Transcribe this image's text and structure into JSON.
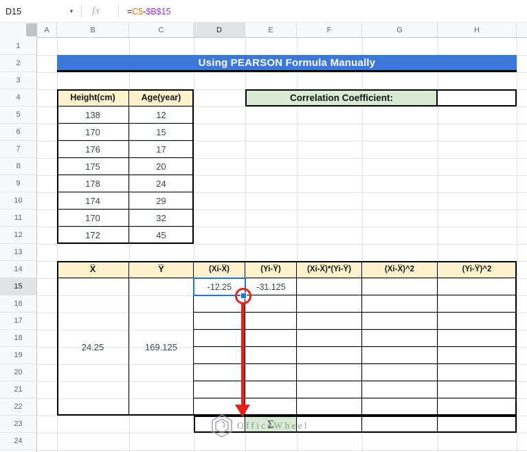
{
  "formula_bar": {
    "cell_ref": "D15",
    "fx_label": "fx",
    "formula_parts": [
      {
        "text": "=",
        "color": "#202124"
      },
      {
        "text": "C5",
        "color": "#E8710A"
      },
      {
        "text": "-",
        "color": "#202124"
      },
      {
        "text": "$B$15",
        "color": "#9334E6"
      }
    ]
  },
  "sheet": {
    "column_headers": [
      "A",
      "B",
      "C",
      "D",
      "E",
      "F",
      "G",
      "H"
    ],
    "row_numbers": [
      1,
      2,
      3,
      4,
      5,
      6,
      7,
      8,
      9,
      10,
      11,
      12,
      13,
      14,
      15,
      16,
      17,
      18,
      19,
      20,
      21,
      22,
      23,
      24
    ],
    "selected_column": "D",
    "selected_row": "15"
  },
  "banner": {
    "title": "Using PEARSON Formula Manually"
  },
  "data_table": {
    "headers": [
      "Height(cm)",
      "Age(year)"
    ],
    "rows": [
      [
        138,
        12
      ],
      [
        170,
        15
      ],
      [
        176,
        17
      ],
      [
        175,
        20
      ],
      [
        178,
        24
      ],
      [
        174,
        29
      ],
      [
        170,
        32
      ],
      [
        172,
        45
      ]
    ]
  },
  "correlation": {
    "label": "Correlation Coefficient:",
    "value": ""
  },
  "calc_table": {
    "headers": [
      "X̅",
      "Y̅",
      "(Xi-X̅)",
      "(Yi-Y̅)",
      "(Xi-X̅)*(Yi-Y̅)",
      "(Xi-X̅)^2",
      "(Yi-Y̅)^2"
    ],
    "x_mean": "24.25",
    "y_mean": "169.125",
    "xi_dev": "-12.25",
    "yi_dev": "-31.125",
    "sum_symbol": "Σ"
  },
  "watermark": {
    "text": "OfficeWheel"
  },
  "colors": {
    "banner_bg": "#3C78D8",
    "table_header_fill": "#FFF2CC",
    "green_fill": "#D9EAD3",
    "selection": "#1A73E8",
    "arrow": "#E8201A"
  }
}
